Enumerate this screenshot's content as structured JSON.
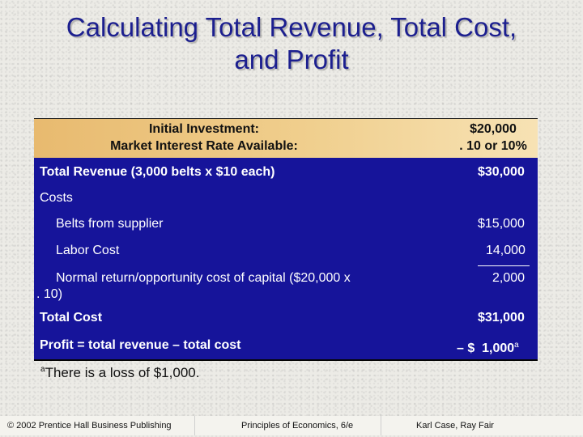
{
  "slide": {
    "title_line1": "Calculating Total Revenue, Total Cost,",
    "title_line2": "and Profit"
  },
  "table": {
    "header": {
      "label_line1": "Initial Investment:",
      "label_line2": "Market Interest Rate Available:",
      "value_line1": "$20,000",
      "value_line2": ". 10 or 10%"
    },
    "rows": [
      {
        "label": "Total Revenue (3,000 belts x $10 each)",
        "value": "$30,000"
      },
      {
        "label": "Costs",
        "value": ""
      },
      {
        "label": "Belts from supplier",
        "value": "$15,000"
      },
      {
        "label": "Labor Cost",
        "value": "14,000"
      },
      {
        "label_line1": "Normal return/opportunity cost of capital ($20,000 x",
        "label_line2": ". 10)",
        "value": "2,000"
      },
      {
        "label": "Total Cost",
        "value": "$31,000"
      },
      {
        "label": "Profit = total revenue – total cost",
        "value": "– $  1,000",
        "value_sup": "a"
      }
    ]
  },
  "footnote": {
    "marker": "a",
    "text": "There is a loss of $1,000."
  },
  "footer": {
    "left": "© 2002 Prentice Hall Business Publishing",
    "center": "Principles of Economics, 6/e",
    "right": "Karl Case, Ray Fair"
  }
}
